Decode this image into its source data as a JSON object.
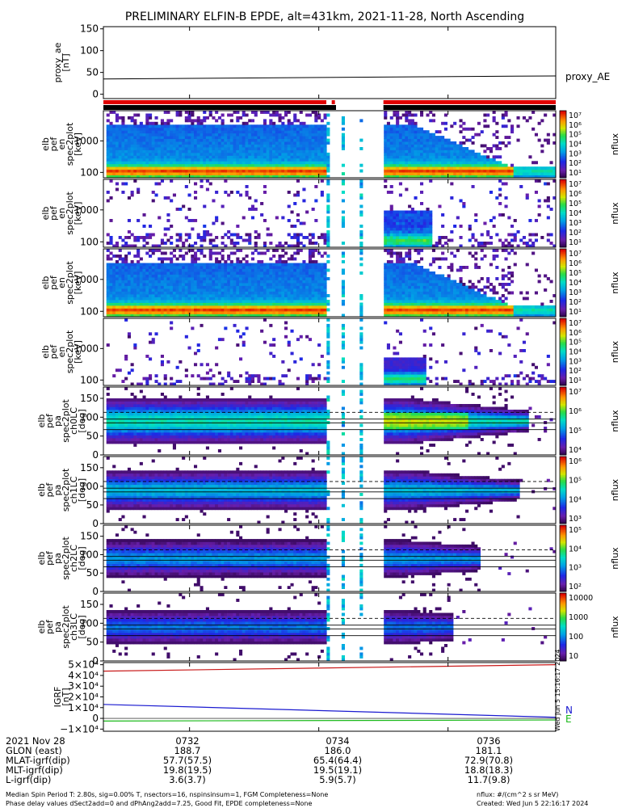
{
  "title": "PRELIMINARY ELFIN-B EPDE, alt=431km, 2021-11-28, North Ascending",
  "panels": [
    {
      "id": "proxy_ae",
      "kind": "line",
      "ylabel": [
        "proxy_ae",
        "[nT]"
      ],
      "yticks": [
        "150",
        "100",
        "50",
        "0"
      ],
      "legend": "proxy_AE"
    },
    {
      "id": "en1",
      "kind": "spec",
      "variant": "en_dense",
      "ylabel": [
        "elb",
        "pef",
        "en",
        "spec2plot",
        "[keV]"
      ],
      "yticks": [
        "1000",
        "100"
      ],
      "cb_ticks": [
        "10⁷",
        "10⁶",
        "10⁵",
        "10⁴",
        "10³",
        "10²",
        "10¹"
      ],
      "cb_label": "nflux"
    },
    {
      "id": "en2",
      "kind": "spec",
      "variant": "en_sparse",
      "ylabel": [
        "elb",
        "pef",
        "en",
        "spec2plot",
        "[keV]"
      ],
      "yticks": [
        "1000",
        "100"
      ],
      "cb_ticks": [
        "10⁷",
        "10⁶",
        "10⁵",
        "10⁴",
        "10³",
        "10²",
        "10¹"
      ],
      "cb_label": "nflux"
    },
    {
      "id": "en3",
      "kind": "spec",
      "variant": "en_dense",
      "ylabel": [
        "elb",
        "pef",
        "en",
        "spec2plot",
        "[keV]"
      ],
      "yticks": [
        "1000",
        "100"
      ],
      "cb_ticks": [
        "10⁷",
        "10⁶",
        "10⁵",
        "10⁴",
        "10³",
        "10²",
        "10¹"
      ],
      "cb_label": "nflux"
    },
    {
      "id": "en4",
      "kind": "spec",
      "variant": "en_sparse2",
      "ylabel": [
        "elb",
        "pef",
        "en",
        "spec2plot",
        "[keV]"
      ],
      "yticks": [
        "1000",
        "100"
      ],
      "cb_ticks": [
        "10⁷",
        "10⁶",
        "10⁵",
        "10⁴",
        "10³",
        "10²",
        "10¹"
      ],
      "cb_label": "nflux"
    },
    {
      "id": "pa0",
      "kind": "spec",
      "variant": "pa0",
      "ylabel": [
        "elb",
        "pef",
        "pa",
        "spec2plot",
        "ch0LC",
        "[deg]"
      ],
      "yticks": [
        "150",
        "100",
        "50",
        "0"
      ],
      "cb_ticks": [
        "10⁷",
        "10⁶",
        "10⁵",
        "10⁴"
      ],
      "cb_label": "nflux"
    },
    {
      "id": "pa1",
      "kind": "spec",
      "variant": "pa1",
      "ylabel": [
        "elb",
        "pef",
        "pa",
        "spec2plot",
        "ch1LC",
        "[deg]"
      ],
      "yticks": [
        "150",
        "100",
        "50",
        "0"
      ],
      "cb_ticks": [
        "10⁶",
        "10⁵",
        "10⁴",
        "10³"
      ],
      "cb_label": "nflux"
    },
    {
      "id": "pa2",
      "kind": "spec",
      "variant": "pa2",
      "ylabel": [
        "elb",
        "pef",
        "pa",
        "spec2plot",
        "ch2LC",
        "[deg]"
      ],
      "yticks": [
        "150",
        "100",
        "50",
        "0"
      ],
      "cb_ticks": [
        "10⁵",
        "10⁴",
        "10³",
        "10²"
      ],
      "cb_label": "nflux"
    },
    {
      "id": "pa3",
      "kind": "spec",
      "variant": "pa3",
      "ylabel": [
        "elb",
        "pef",
        "pa",
        "spec2plot",
        "ch3LC",
        "[deg]"
      ],
      "yticks": [
        "150",
        "100",
        "50",
        "0"
      ],
      "cb_ticks": [
        "10000",
        "1000",
        "100",
        "10"
      ],
      "cb_label": "nflux"
    },
    {
      "id": "igrf",
      "kind": "line",
      "ylabel": [
        "IGRF",
        "[nT]"
      ],
      "yticks": [
        "5×10⁴",
        "4×10⁴",
        "3×10⁴",
        "2×10⁴",
        "1×10⁴",
        "0",
        "−1×10⁴"
      ],
      "legend_n": "N",
      "legend_e": "E"
    }
  ],
  "x_rows": {
    "labels": [
      "2021 Nov 28",
      "GLON (east)",
      "MLAT-igrf(dip)",
      "MLT-igrf(dip)",
      "L-igrf(dip)"
    ],
    "times": [
      "0732",
      "0734",
      "0736"
    ],
    "glon": [
      "188.7",
      "186.0",
      "181.1"
    ],
    "mlat": [
      "57.7(57.5)",
      "65.4(64.4)",
      "72.9(70.8)"
    ],
    "mlt": [
      "19.8(19.5)",
      "19.5(19.1)",
      "18.8(18.3)"
    ],
    "lshell": [
      "3.6(3.7)",
      "5.9(5.7)",
      "11.7(9.8)"
    ]
  },
  "footer": {
    "line1": "Median Spin Period T: 2.80s, sig=0.00% T, nsectors=16, nspinsinsum=1, FGM Completeness=None",
    "line2": "Phase delay values dSect2add=0 and dPhAng2add=7.25, Good Fit, EPDE completeness=None",
    "units": "nflux: #/(cm^2 s sr MeV)",
    "created": "Created: Wed Jun  5 22:16:17 2024",
    "stamp": "Wed Jun  5 15:16:17 2024"
  },
  "chart_data": [
    {
      "type": "line",
      "title": "PRELIMINARY ELFIN-B EPDE, alt=431km, 2021-11-28, North Ascending",
      "ylabel": "proxy_ae [nT]",
      "ylim": [
        -10,
        155
      ],
      "series": [
        {
          "name": "proxy_AE",
          "x": [
            "0730:40",
            "0737:40"
          ],
          "values": [
            35,
            42
          ]
        }
      ]
    },
    {
      "type": "heatmap",
      "ylabel": "elb pef en spec2plot [keV]",
      "yscale": "log",
      "ylim": [
        80,
        7000
      ],
      "colorbar": "nflux 10^1 - 10^7"
    },
    {
      "type": "heatmap",
      "ylabel": "elb pef en spec2plot [keV]",
      "yscale": "log",
      "ylim": [
        80,
        7000
      ],
      "colorbar": "nflux 10^1 - 10^7"
    },
    {
      "type": "heatmap",
      "ylabel": "elb pef en spec2plot [keV]",
      "yscale": "log",
      "ylim": [
        80,
        7000
      ],
      "colorbar": "nflux 10^1 - 10^7"
    },
    {
      "type": "heatmap",
      "ylabel": "elb pef en spec2plot [keV]",
      "yscale": "log",
      "ylim": [
        80,
        7000
      ],
      "colorbar": "nflux 10^1 - 10^7"
    },
    {
      "type": "heatmap",
      "ylabel": "elb pef pa spec2plot ch0LC [deg]",
      "ylim": [
        0,
        180
      ],
      "colorbar": "nflux 10^4 - 10^7",
      "reference_lines_deg": [
        67,
        85,
        95,
        113
      ]
    },
    {
      "type": "heatmap",
      "ylabel": "elb pef pa spec2plot ch1LC [deg]",
      "ylim": [
        0,
        180
      ],
      "colorbar": "nflux 10^3 - 10^6",
      "reference_lines_deg": [
        67,
        85,
        95,
        113
      ]
    },
    {
      "type": "heatmap",
      "ylabel": "elb pef pa spec2plot ch2LC [deg]",
      "ylim": [
        0,
        180
      ],
      "colorbar": "nflux 10^2 - 10^5",
      "reference_lines_deg": [
        67,
        85,
        95,
        113
      ]
    },
    {
      "type": "heatmap",
      "ylabel": "elb pef pa spec2plot ch3LC [deg]",
      "ylim": [
        0,
        180
      ],
      "colorbar": "nflux 10 - 10000",
      "reference_lines_deg": [
        67,
        85,
        95,
        113
      ]
    },
    {
      "type": "line",
      "ylabel": "IGRF [nT]",
      "ylim": [
        -12000,
        52000
      ],
      "series": [
        {
          "name": "N",
          "color": "#1a1ad0",
          "x": [
            "0730:40",
            "0737:40"
          ],
          "values": [
            13000,
            1000
          ]
        },
        {
          "name": "E",
          "color": "#18b818",
          "x": [
            "0730:40",
            "0737:40"
          ],
          "values": [
            -2500,
            -1500
          ]
        },
        {
          "x": [
            "0730:40",
            "0737:40"
          ],
          "values": [
            44000,
            50000
          ],
          "color": "#c81818"
        }
      ]
    }
  ]
}
